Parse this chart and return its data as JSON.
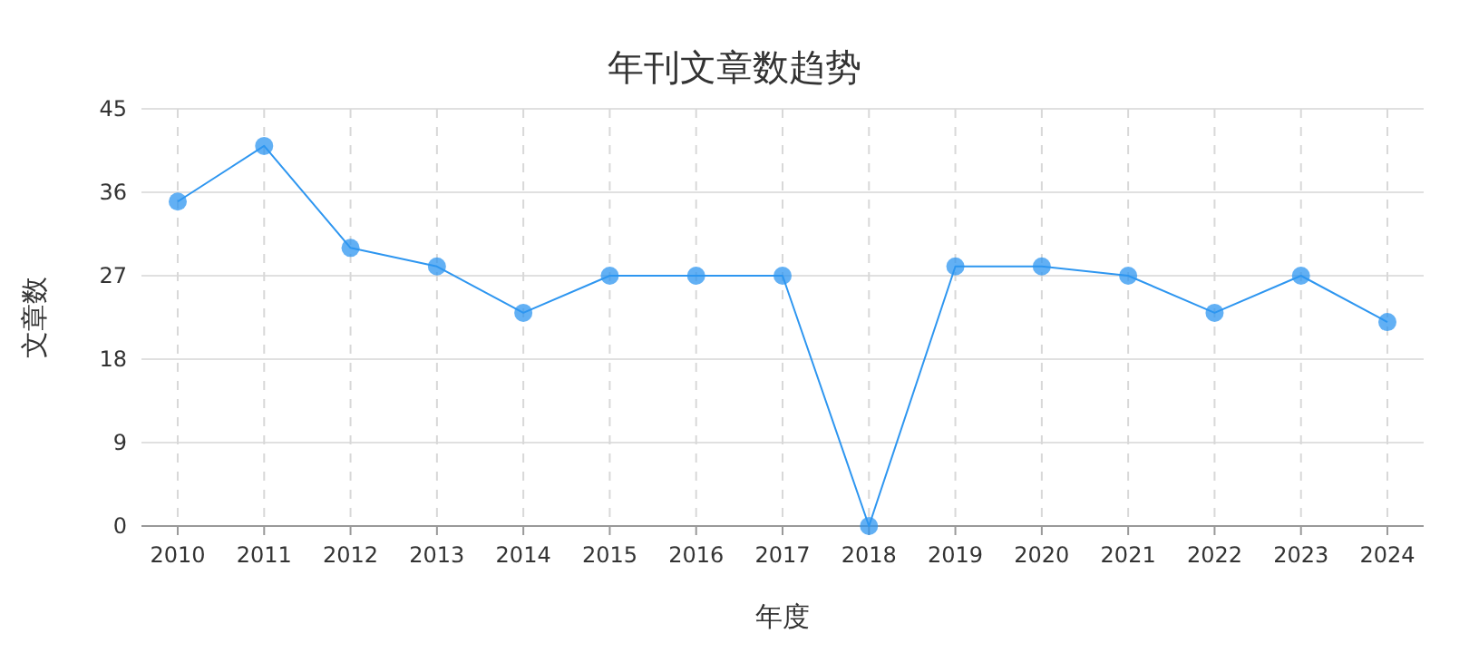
{
  "chart_data": {
    "type": "line",
    "title": "年刊文章数趋势",
    "xlabel": "年度",
    "ylabel": "文章数",
    "categories": [
      "2010",
      "2011",
      "2012",
      "2013",
      "2014",
      "2015",
      "2016",
      "2017",
      "2018",
      "2019",
      "2020",
      "2021",
      "2022",
      "2023",
      "2024"
    ],
    "series": [
      {
        "color": "#2e96f0",
        "values": [
          35,
          41,
          30,
          28,
          23,
          27,
          27,
          27,
          0,
          28,
          28,
          27,
          23,
          27,
          22
        ]
      }
    ],
    "ylim": [
      0,
      45
    ],
    "yticks": [
      0,
      9,
      18,
      27,
      36,
      45
    ],
    "grid": true,
    "marker": "circle",
    "line_style": "solid",
    "legend": false
  }
}
